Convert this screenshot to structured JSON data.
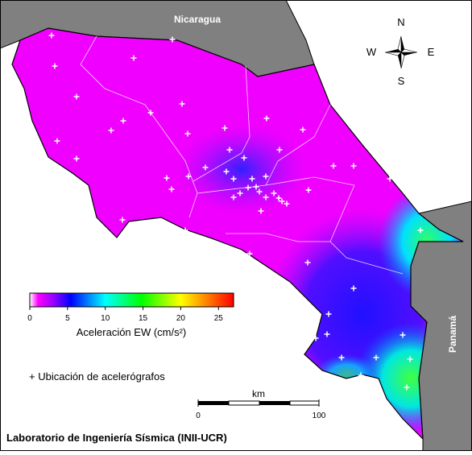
{
  "map": {
    "labels": {
      "nicaragua": "Nicaragua",
      "panama": "Panamá"
    },
    "compass": {
      "n": "N",
      "s": "S",
      "e": "E",
      "w": "W"
    },
    "colorbar": {
      "label": "Aceleración EW (cm/s²)",
      "range": [
        0,
        27
      ],
      "ticks": [
        0,
        5,
        10,
        15,
        20,
        25
      ]
    },
    "legend": "+ Ubicación de acelerógrafos",
    "scale": {
      "unit": "km",
      "ticks": [
        0,
        100
      ]
    },
    "footer": "Laboratorio de Ingeniería Sísmica (INII-UCR)"
  }
}
